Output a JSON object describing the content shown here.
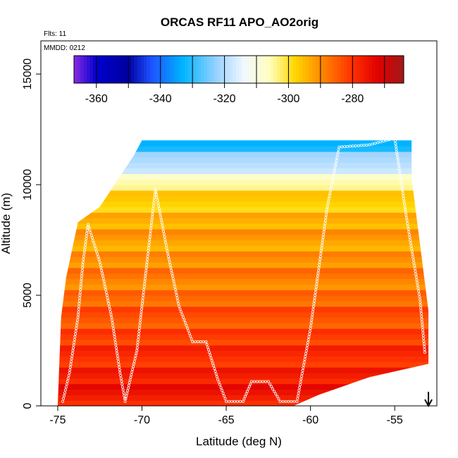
{
  "chart_data": {
    "type": "heatmap",
    "title": "ORCAS RF11 APO_AO2orig",
    "flts_label": "Flts: 11",
    "mmdd_label": "MMDD: 0212",
    "xlabel": "Latitude (deg N)",
    "ylabel": "Altitude (m)",
    "xlim": [
      -76,
      -52.5
    ],
    "ylim": [
      0,
      16500
    ],
    "x_ticks": [
      -75,
      -70,
      -65,
      -60,
      -55
    ],
    "x_tick_labels": [
      "-75",
      "-70",
      "-65",
      "-60",
      "-55"
    ],
    "y_ticks": [
      0,
      5000,
      10000,
      15000
    ],
    "y_tick_labels": [
      "0",
      "5000",
      "10000",
      "15000"
    ],
    "colorbar": {
      "range": [
        -367,
        -264
      ],
      "ticks": [
        -360,
        -340,
        -320,
        -300,
        -280
      ],
      "tick_labels": [
        "-360",
        "-340",
        "-320",
        "-300",
        "-280"
      ],
      "stops": [
        {
          "v": -367,
          "color": "#8a2be2"
        },
        {
          "v": -360,
          "color": "#0000cd"
        },
        {
          "v": -350,
          "color": "#0000a0"
        },
        {
          "v": -343,
          "color": "#1e50ff"
        },
        {
          "v": -333,
          "color": "#00b4ff"
        },
        {
          "v": -322,
          "color": "#9ed4ff"
        },
        {
          "v": -314,
          "color": "#f0f8ff"
        },
        {
          "v": -306,
          "color": "#ffffc0"
        },
        {
          "v": -298,
          "color": "#ffd700"
        },
        {
          "v": -290,
          "color": "#ff8c00"
        },
        {
          "v": -280,
          "color": "#ff3000"
        },
        {
          "v": -272,
          "color": "#e00000"
        },
        {
          "v": -264,
          "color": "#a01818"
        }
      ]
    },
    "field_bounds": [
      {
        "lat": -75.0,
        "alt_top": 0
      },
      {
        "lat": -74.8,
        "alt_top": 4000
      },
      {
        "lat": -74.5,
        "alt_top": 5800
      },
      {
        "lat": -73.8,
        "alt_top": 8300
      },
      {
        "lat": -72.5,
        "alt_top": 9000
      },
      {
        "lat": -70.5,
        "alt_top": 11300
      },
      {
        "lat": -70.0,
        "alt_top": 12000
      },
      {
        "lat": -54.0,
        "alt_top": 12000
      },
      {
        "lat": -54.0,
        "alt_top": 10300
      },
      {
        "lat": -53.0,
        "alt_top": 4300
      },
      {
        "lat": -53.0,
        "alt_top": 1900
      }
    ],
    "field_bottom": [
      {
        "lat": -53.0,
        "alt": 1900
      },
      {
        "lat": -56.5,
        "alt": 1300
      },
      {
        "lat": -58.0,
        "alt": 900
      },
      {
        "lat": -59.5,
        "alt": 500
      },
      {
        "lat": -61.0,
        "alt": 0
      },
      {
        "lat": -75.0,
        "alt": 0
      }
    ],
    "vertical_profile": [
      {
        "alt": 500,
        "value": -276
      },
      {
        "alt": 1500,
        "value": -277
      },
      {
        "alt": 2500,
        "value": -280
      },
      {
        "alt": 3500,
        "value": -282
      },
      {
        "alt": 4500,
        "value": -285
      },
      {
        "alt": 5500,
        "value": -288
      },
      {
        "alt": 6500,
        "value": -290
      },
      {
        "alt": 7500,
        "value": -292
      },
      {
        "alt": 8500,
        "value": -294
      },
      {
        "alt": 9500,
        "value": -298
      },
      {
        "alt": 10000,
        "value": -303
      },
      {
        "alt": 10500,
        "value": -312
      },
      {
        "alt": 11000,
        "value": -320
      },
      {
        "alt": 11500,
        "value": -327
      },
      {
        "alt": 12000,
        "value": -335
      }
    ],
    "flight_track": [
      {
        "lat": -74.7,
        "alt": 200
      },
      {
        "lat": -74.3,
        "alt": 1500
      },
      {
        "lat": -73.8,
        "alt": 4000
      },
      {
        "lat": -73.5,
        "alt": 6500
      },
      {
        "lat": -73.2,
        "alt": 8200
      },
      {
        "lat": -72.5,
        "alt": 6500
      },
      {
        "lat": -71.8,
        "alt": 4000
      },
      {
        "lat": -71.3,
        "alt": 1500
      },
      {
        "lat": -71.0,
        "alt": 200
      },
      {
        "lat": -70.3,
        "alt": 2500
      },
      {
        "lat": -69.7,
        "alt": 6500
      },
      {
        "lat": -69.2,
        "alt": 9800
      },
      {
        "lat": -68.5,
        "alt": 7000
      },
      {
        "lat": -67.8,
        "alt": 4500
      },
      {
        "lat": -67.0,
        "alt": 2900
      },
      {
        "lat": -66.2,
        "alt": 2900
      },
      {
        "lat": -65.5,
        "alt": 1200
      },
      {
        "lat": -65.0,
        "alt": 200
      },
      {
        "lat": -64.0,
        "alt": 200
      },
      {
        "lat": -63.5,
        "alt": 1100
      },
      {
        "lat": -62.5,
        "alt": 1100
      },
      {
        "lat": -61.8,
        "alt": 200
      },
      {
        "lat": -60.8,
        "alt": 200
      },
      {
        "lat": -60.0,
        "alt": 3500
      },
      {
        "lat": -59.0,
        "alt": 9000
      },
      {
        "lat": -58.3,
        "alt": 11700
      },
      {
        "lat": -56.5,
        "alt": 11800
      },
      {
        "lat": -55.0,
        "alt": 12100
      },
      {
        "lat": -54.3,
        "alt": 8500
      },
      {
        "lat": -53.5,
        "alt": 4800
      },
      {
        "lat": -53.2,
        "alt": 2300
      }
    ],
    "arrow_marker": {
      "lat": -53.0,
      "direction": "down"
    }
  }
}
